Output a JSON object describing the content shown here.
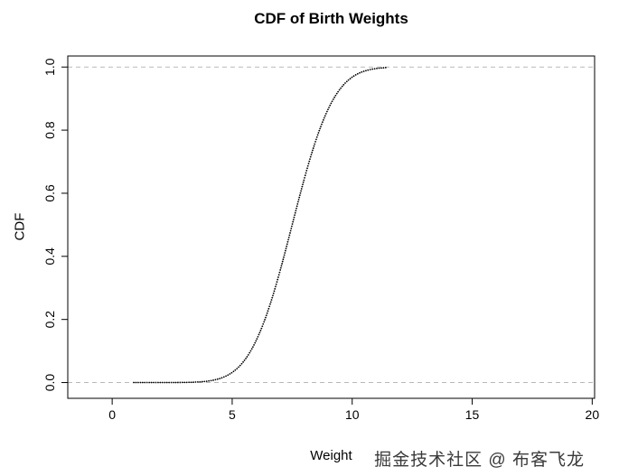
{
  "chart_data": {
    "type": "scatter",
    "title": "CDF of Birth Weights",
    "xlabel": "Weight",
    "ylabel": "CDF",
    "x_ticks": [
      0,
      5,
      10,
      15,
      20
    ],
    "x_tick_labels": [
      "0",
      "5",
      "10",
      "15",
      "20"
    ],
    "y_ticks": [
      0.0,
      0.2,
      0.4,
      0.6,
      0.8,
      1.0
    ],
    "y_tick_labels": [
      "0.0",
      "0.2",
      "0.4",
      "0.6",
      "0.8",
      "1.0"
    ],
    "xlim": [
      -1.85,
      20.1
    ],
    "ylim": [
      -0.05,
      1.035
    ],
    "grid": false,
    "legend": "none",
    "reference_lines_y": [
      0.0,
      1.0
    ],
    "curve": {
      "shape": "normal-cdf",
      "mean": 7.5,
      "sd": 1.35,
      "x_start": 0.9,
      "x_end": 11.4
    },
    "sample_points": {
      "x": [
        1,
        2,
        3,
        4,
        5,
        6,
        6.5,
        7,
        7.5,
        8,
        8.5,
        9,
        9.5,
        10,
        10.5,
        11,
        11.4
      ],
      "cdf": [
        0.0,
        0.0,
        0.001,
        0.005,
        0.03,
        0.13,
        0.23,
        0.36,
        0.5,
        0.64,
        0.77,
        0.87,
        0.93,
        0.97,
        0.987,
        0.995,
        0.998
      ]
    },
    "colors": {
      "point": "#000000",
      "axis": "#000000",
      "reference_line": "#b8b8b8",
      "text": "#000000"
    }
  },
  "watermark": {
    "text": "掘金技术社区 @ 布客飞龙"
  }
}
